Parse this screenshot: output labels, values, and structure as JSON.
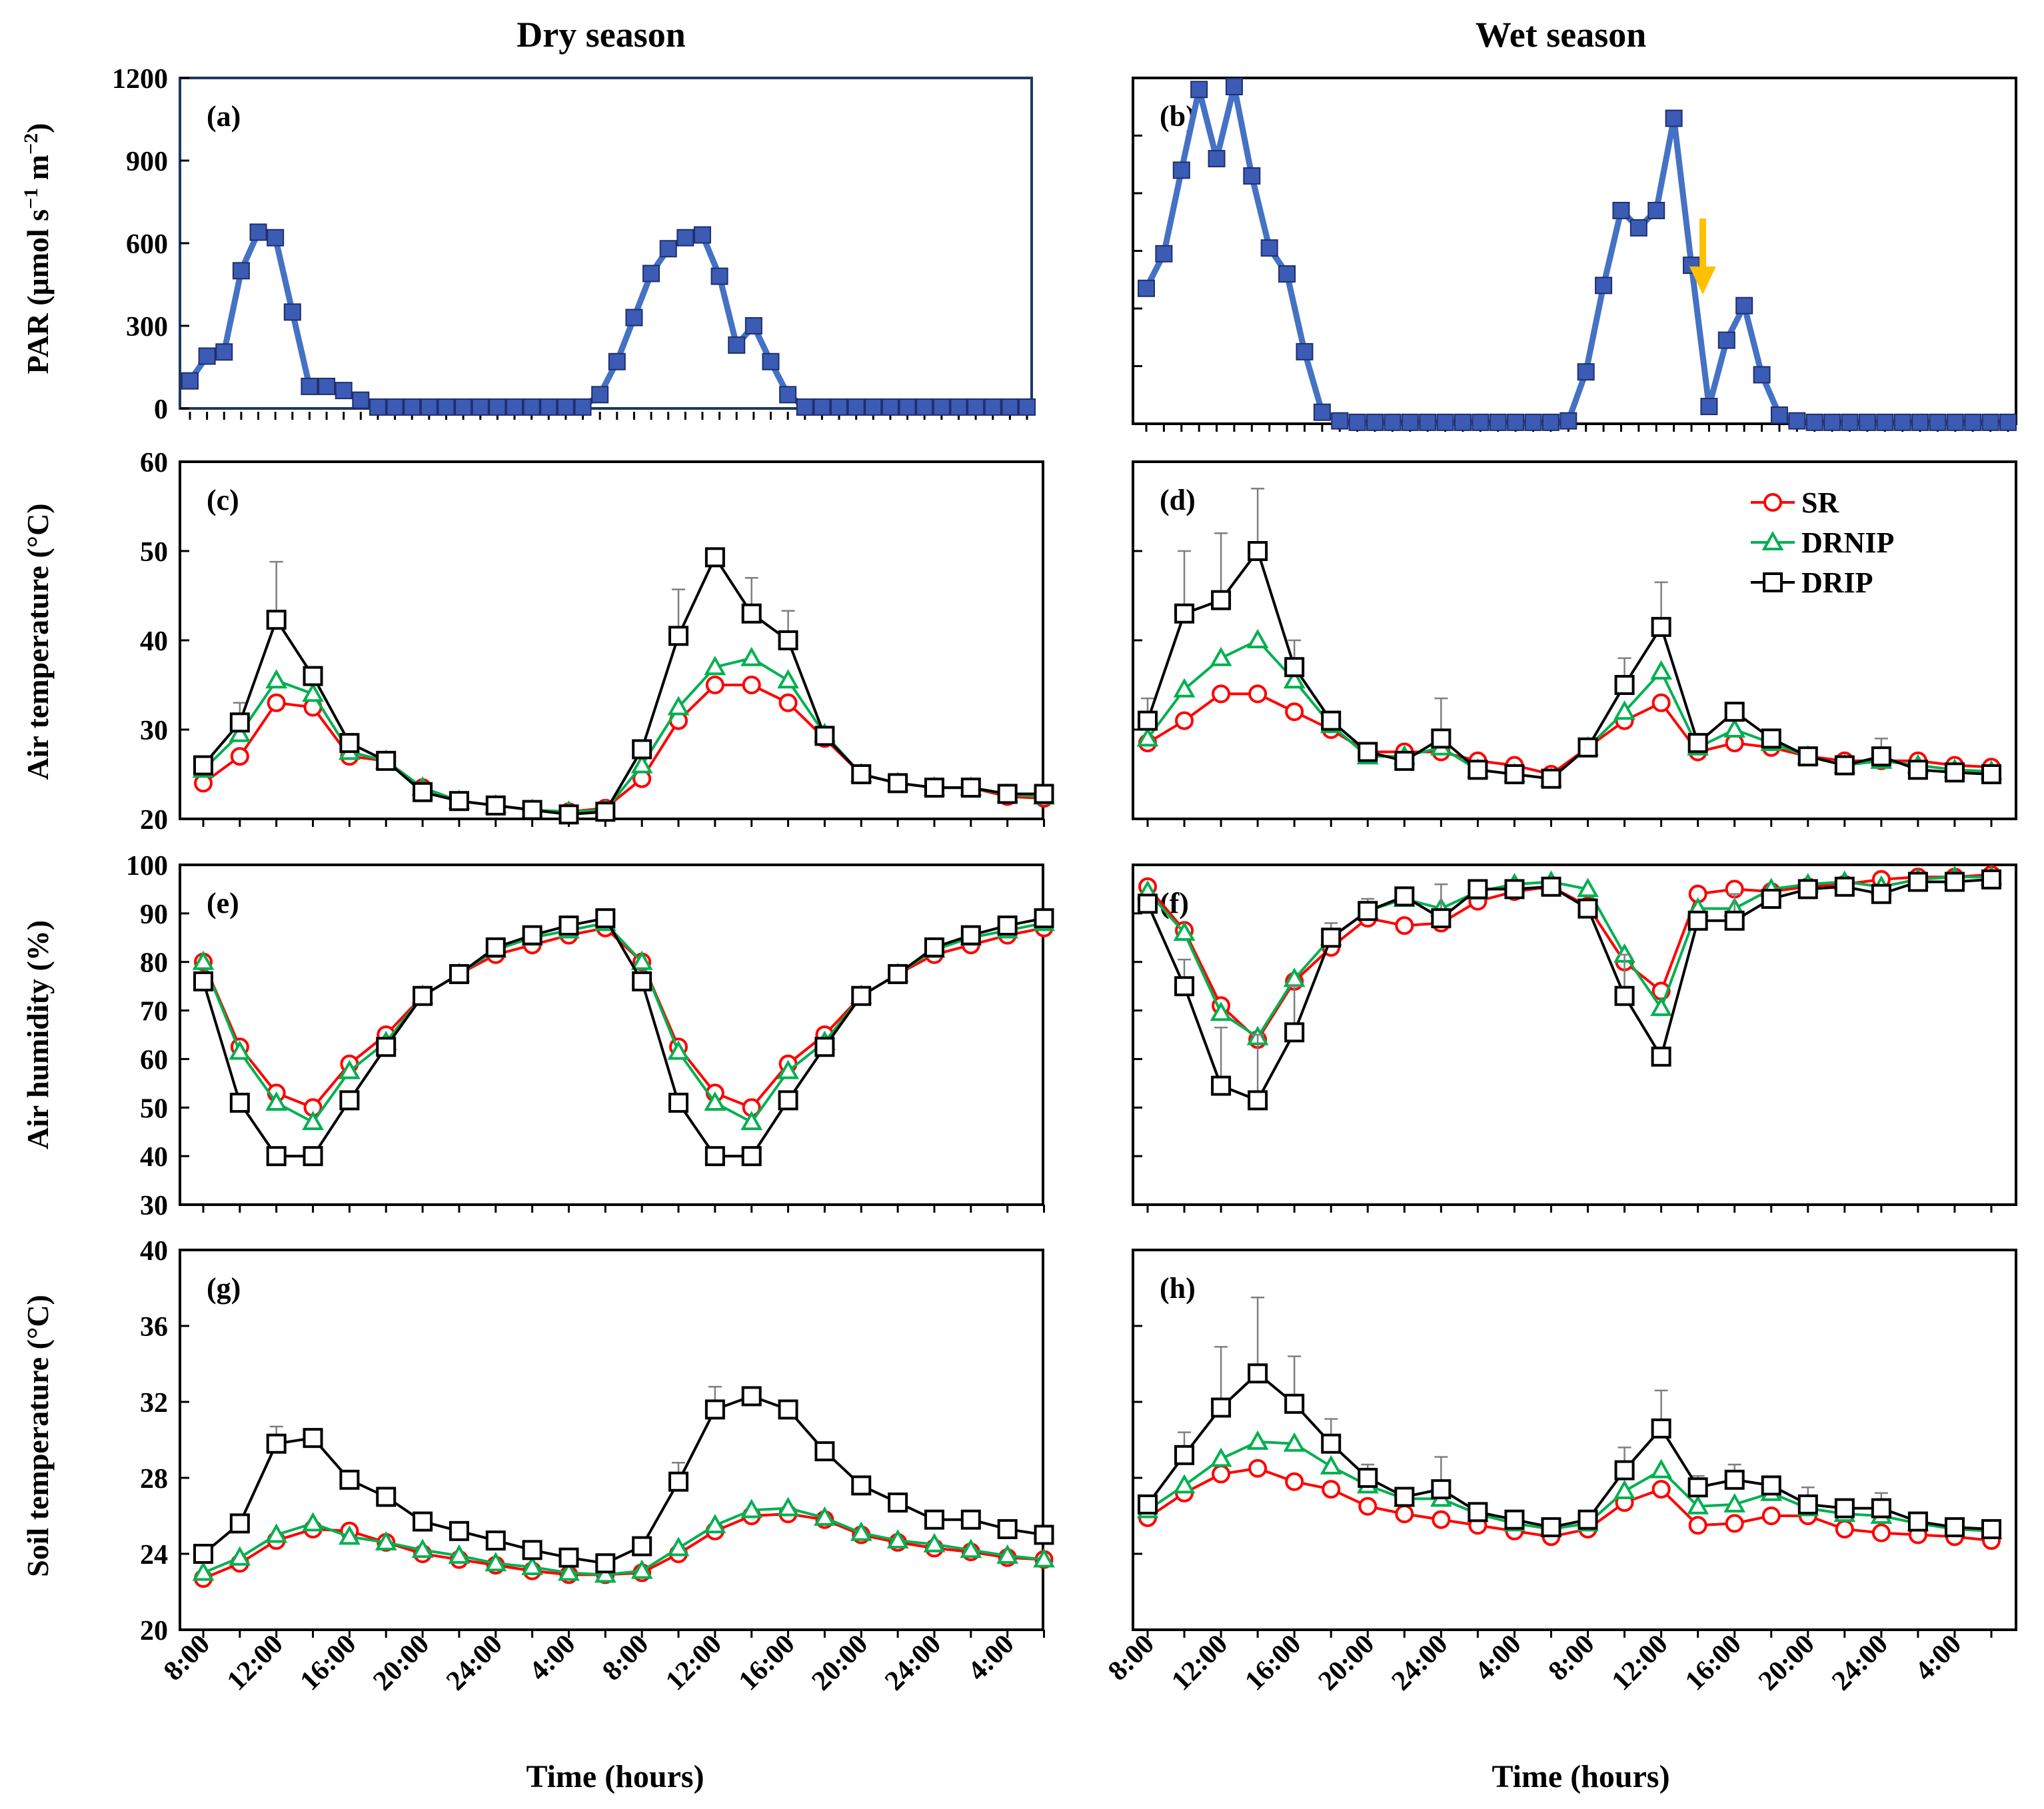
{
  "titles": {
    "dry": "Dry season",
    "wet": "Wet season"
  },
  "axis_labels": {
    "x": "Time (hours)",
    "par_prefix": "PAR (μmol s",
    "par_sup1": "−1",
    "par_mid": " m",
    "par_sup2": "−2",
    "par_suffix": ")",
    "air_temp": "Air temperature (°C)",
    "humidity": "Air humidity (%)",
    "soil_temp": "Soil temperature (°C)"
  },
  "x_tick_labels": [
    "8:00",
    "12:00",
    "16:00",
    "20:00",
    "24:00",
    "4:00",
    "8:00",
    "12:00",
    "16:00",
    "20:00",
    "24:00",
    "4:00"
  ],
  "legend": [
    "SR",
    "DRNIP",
    "DRIP"
  ],
  "annotation": "arrow",
  "colors": {
    "SR": "#ff0000",
    "DRNIP": "#00b050",
    "DRIP": "#000000",
    "PAR": "#4472c4",
    "PAR_marker": "#3b5bb5",
    "arrow": "#ffc000",
    "err": "#7f7f7f"
  },
  "chart_data": [
    {
      "id": "a",
      "label": "(a)",
      "type": "line",
      "ylim": [
        0,
        1200
      ],
      "yticks": [
        0,
        300,
        600,
        900,
        1200
      ],
      "show_y_labels": true,
      "series": [
        {
          "name": "PAR",
          "values": [
            100,
            190,
            205,
            500,
            640,
            620,
            350,
            80,
            80,
            65,
            30,
            5,
            5,
            5,
            5,
            5,
            5,
            5,
            5,
            5,
            5,
            5,
            5,
            5,
            50,
            170,
            330,
            490,
            580,
            620,
            630,
            480,
            230,
            300,
            170,
            50,
            5,
            5,
            5,
            5,
            5,
            5,
            5,
            5,
            5,
            5,
            5,
            5,
            5,
            5
          ]
        }
      ]
    },
    {
      "id": "b",
      "label": "(b)",
      "type": "line",
      "ylim": [
        0,
        1200
      ],
      "yticks": [
        0,
        200,
        400,
        600,
        800,
        1000,
        1200
      ],
      "show_y_labels": false,
      "series": [
        {
          "name": "PAR",
          "values": [
            470,
            590,
            880,
            1160,
            920,
            1170,
            860,
            610,
            520,
            250,
            40,
            10,
            5,
            5,
            5,
            5,
            5,
            5,
            5,
            5,
            5,
            5,
            5,
            5,
            10,
            180,
            480,
            740,
            680,
            740,
            1060,
            550,
            60,
            290,
            410,
            170,
            30,
            10,
            5,
            5,
            5,
            5,
            5,
            5,
            5,
            5,
            5,
            5,
            5,
            5
          ]
        }
      ]
    },
    {
      "id": "c",
      "label": "(c)",
      "type": "line",
      "ylim": [
        20,
        60
      ],
      "yticks": [
        20,
        30,
        40,
        50,
        60
      ],
      "show_y_labels": true,
      "series": [
        {
          "name": "SR",
          "values": [
            24.0,
            27.0,
            33.0,
            32.5,
            27.0,
            26.5,
            23.5,
            22.0,
            21.5,
            21.0,
            20.8,
            21.2,
            24.5,
            31.0,
            35.0,
            35.0,
            33.0,
            29.0,
            25.0,
            24.0,
            23.5,
            23.5,
            22.5,
            22.3
          ]
        },
        {
          "name": "DRNIP",
          "values": [
            25.5,
            29.5,
            35.5,
            34.0,
            27.5,
            26.5,
            23.5,
            22.0,
            21.5,
            21.0,
            20.8,
            21.0,
            26.0,
            32.5,
            37.0,
            38.0,
            35.5,
            29.5,
            25.0,
            24.0,
            23.5,
            23.5,
            22.7,
            22.5
          ]
        },
        {
          "name": "DRIP",
          "values": [
            26.0,
            30.8,
            42.3,
            36.0,
            28.5,
            26.5,
            23.0,
            22.0,
            21.5,
            21.0,
            20.5,
            20.8,
            27.8,
            40.5,
            49.3,
            43.0,
            40.0,
            29.3,
            25.0,
            24.0,
            23.5,
            23.5,
            22.8,
            22.8
          ],
          "err": [
            0,
            2.2,
            6.5,
            1.0,
            0.8,
            0,
            0,
            0,
            0,
            0,
            0,
            0,
            0.8,
            5.2,
            0,
            4.0,
            3.3,
            0,
            0,
            0,
            0,
            0,
            0,
            0
          ]
        }
      ]
    },
    {
      "id": "d",
      "label": "(d)",
      "type": "line",
      "ylim": [
        20,
        60
      ],
      "yticks": [
        20,
        30,
        40,
        50,
        60
      ],
      "show_y_labels": false,
      "series": [
        {
          "name": "SR",
          "values": [
            28.5,
            31.0,
            34.0,
            34.0,
            32.0,
            30.0,
            27.5,
            27.5,
            27.5,
            26.5,
            26.0,
            25.0,
            28.0,
            31.0,
            33.0,
            27.5,
            28.5,
            28.0,
            27.0,
            26.5,
            26.5,
            26.5,
            26.0,
            25.8
          ]
        },
        {
          "name": "DRNIP",
          "values": [
            29.0,
            34.5,
            38.0,
            40.0,
            35.5,
            30.5,
            27.0,
            27.0,
            28.0,
            25.5,
            25.0,
            24.5,
            28.0,
            32.0,
            36.5,
            28.0,
            30.0,
            28.5,
            27.0,
            26.0,
            26.5,
            26.0,
            25.5,
            25.3
          ]
        },
        {
          "name": "DRIP",
          "values": [
            31.0,
            43.0,
            44.5,
            50.0,
            37.0,
            31.0,
            27.5,
            26.5,
            29.0,
            25.5,
            25.0,
            24.5,
            28.0,
            35.0,
            41.5,
            28.5,
            32.0,
            29.0,
            27.0,
            26.0,
            27.0,
            25.5,
            25.2,
            25.0
          ],
          "err": [
            2.5,
            7.0,
            7.5,
            7.0,
            3.0,
            1.0,
            0,
            0,
            4.5,
            0,
            0,
            0,
            0,
            3.0,
            5.0,
            0,
            0,
            0,
            0,
            1.0,
            2.0,
            0,
            0,
            0
          ]
        }
      ]
    },
    {
      "id": "e",
      "label": "(e)",
      "type": "line",
      "ylim": [
        30,
        100
      ],
      "yticks": [
        30,
        40,
        50,
        60,
        70,
        80,
        90,
        100
      ],
      "show_y_labels": true,
      "series": [
        {
          "name": "SR",
          "values": [
            80.0,
            62.5,
            53.0,
            50.0,
            59.0,
            65.0,
            73.0,
            77.5,
            81.5,
            83.5,
            85.5,
            87.0,
            80.0,
            62.5,
            53.0,
            50.0,
            59.0,
            65.0,
            73.0,
            77.5,
            81.5,
            83.5,
            85.5,
            87.0
          ]
        },
        {
          "name": "DRNIP",
          "values": [
            80.0,
            61.5,
            51.0,
            47.0,
            57.5,
            63.5,
            73.0,
            77.5,
            82.5,
            85.0,
            86.5,
            88.0,
            80.0,
            61.5,
            51.0,
            47.0,
            57.5,
            63.5,
            73.0,
            77.5,
            82.5,
            85.0,
            86.5,
            88.0
          ]
        },
        {
          "name": "DRIP",
          "values": [
            76.0,
            51.0,
            40.0,
            40.0,
            51.5,
            62.5,
            73.0,
            77.5,
            83.0,
            85.5,
            87.5,
            89.0,
            76.0,
            51.0,
            40.0,
            40.0,
            51.5,
            62.5,
            73.0,
            77.5,
            83.0,
            85.5,
            87.5,
            89.0
          ]
        }
      ]
    },
    {
      "id": "f",
      "label": "(f)",
      "type": "line",
      "ylim": [
        30,
        100
      ],
      "yticks": [
        30,
        40,
        50,
        60,
        70,
        80,
        90,
        100
      ],
      "show_y_labels": false,
      "series": [
        {
          "name": "SR",
          "values": [
            95.5,
            86.5,
            71.0,
            64.0,
            76.0,
            83.0,
            89.0,
            87.5,
            88.0,
            92.5,
            94.5,
            95.5,
            91.5,
            80.0,
            74.0,
            94.0,
            95.0,
            94.5,
            95.5,
            96.0,
            97.0,
            97.5,
            97.5,
            98.0
          ]
        },
        {
          "name": "DRNIP",
          "values": [
            94.5,
            86.0,
            69.5,
            64.5,
            76.5,
            85.0,
            90.5,
            93.0,
            91.0,
            94.5,
            96.0,
            96.5,
            95.0,
            81.5,
            70.5,
            91.0,
            91.0,
            95.0,
            96.0,
            96.5,
            95.5,
            97.0,
            97.5,
            97.5
          ]
        },
        {
          "name": "DRIP",
          "values": [
            92.0,
            75.0,
            54.5,
            51.5,
            65.5,
            85.0,
            90.5,
            93.5,
            89.0,
            95.0,
            95.0,
            95.5,
            91.0,
            73.0,
            60.5,
            88.5,
            88.5,
            93.0,
            95.0,
            95.5,
            94.0,
            96.5,
            96.5,
            97.0
          ],
          "err": [
            0,
            5.5,
            12.0,
            13.5,
            9.5,
            3.0,
            2.5,
            0,
            7.0,
            0,
            0,
            0,
            0,
            8.5,
            0,
            0,
            5.5,
            0,
            0,
            0,
            0,
            0,
            0,
            0
          ]
        }
      ]
    },
    {
      "id": "g",
      "label": "(g)",
      "type": "line",
      "ylim": [
        20,
        40
      ],
      "yticks": [
        20,
        24,
        28,
        32,
        36,
        40
      ],
      "show_y_labels": true,
      "series": [
        {
          "name": "SR",
          "values": [
            22.7,
            23.5,
            24.7,
            25.3,
            25.2,
            24.6,
            24.0,
            23.7,
            23.4,
            23.1,
            22.9,
            22.9,
            23.0,
            24.0,
            25.2,
            26.0,
            26.1,
            25.8,
            25.0,
            24.6,
            24.3,
            24.1,
            23.8,
            23.7
          ]
        },
        {
          "name": "DRNIP",
          "values": [
            23.0,
            23.8,
            25.0,
            25.6,
            24.9,
            24.6,
            24.2,
            23.9,
            23.5,
            23.3,
            23.0,
            22.9,
            23.1,
            24.3,
            25.5,
            26.3,
            26.4,
            25.9,
            25.1,
            24.7,
            24.5,
            24.2,
            23.9,
            23.7
          ]
        },
        {
          "name": "DRIP",
          "values": [
            24.0,
            25.6,
            29.8,
            30.1,
            27.9,
            27.0,
            25.7,
            25.2,
            24.7,
            24.2,
            23.8,
            23.5,
            24.4,
            27.8,
            31.6,
            32.3,
            31.6,
            29.4,
            27.6,
            26.7,
            25.8,
            25.8,
            25.3,
            25.0
          ],
          "err": [
            0,
            0,
            0.9,
            0,
            0,
            0,
            0,
            0,
            0,
            0,
            0,
            0,
            0,
            1.0,
            1.2,
            0,
            0,
            0,
            0,
            0,
            0,
            0,
            0,
            0
          ]
        }
      ]
    },
    {
      "id": "h",
      "label": "(h)",
      "type": "line",
      "ylim": [
        20,
        40
      ],
      "yticks": [
        20,
        24,
        28,
        32,
        36,
        40
      ],
      "show_y_labels": false,
      "series": [
        {
          "name": "SR",
          "values": [
            25.9,
            27.2,
            28.2,
            28.5,
            27.8,
            27.4,
            26.5,
            26.1,
            25.8,
            25.5,
            25.2,
            24.9,
            25.3,
            26.7,
            27.4,
            25.5,
            25.6,
            26.0,
            26.0,
            25.3,
            25.1,
            25.0,
            24.9,
            24.7
          ]
        },
        {
          "name": "DRNIP",
          "values": [
            26.3,
            27.6,
            29.0,
            29.9,
            29.8,
            28.6,
            27.6,
            26.9,
            26.9,
            26.1,
            25.6,
            25.3,
            25.6,
            27.3,
            28.4,
            26.5,
            26.6,
            27.2,
            26.4,
            26.1,
            26.0,
            25.6,
            25.3,
            25.2
          ]
        },
        {
          "name": "DRIP",
          "values": [
            26.6,
            29.2,
            31.7,
            33.5,
            31.9,
            29.8,
            28.0,
            27.0,
            27.4,
            26.2,
            25.8,
            25.4,
            25.8,
            28.4,
            30.6,
            27.5,
            27.9,
            27.6,
            26.6,
            26.4,
            26.4,
            25.7,
            25.4,
            25.3
          ],
          "err": [
            0,
            1.2,
            3.2,
            4.0,
            2.5,
            1.3,
            0.7,
            0,
            1.7,
            0,
            0,
            0,
            0,
            1.2,
            2.0,
            0.6,
            0.8,
            0,
            0.9,
            0,
            0.8,
            0,
            0,
            0
          ]
        }
      ]
    }
  ]
}
